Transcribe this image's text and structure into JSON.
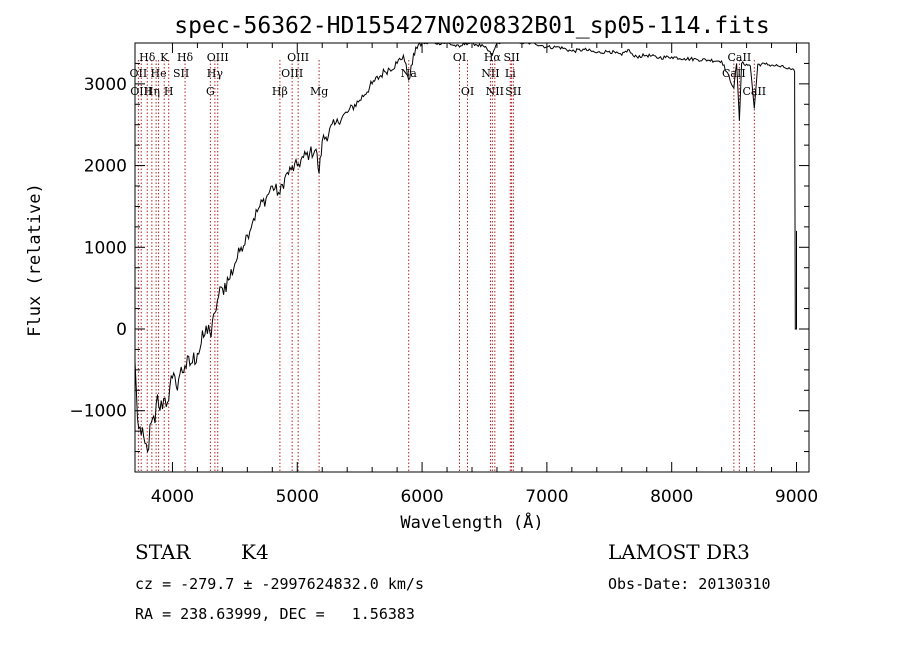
{
  "chart_data": {
    "type": "line",
    "title": "spec-56362-HD155427N020832B01_sp05-114.fits",
    "xlabel": "Wavelength (Å)",
    "ylabel": "Flux (relative)",
    "xlim": [
      3700,
      9100
    ],
    "ylim": [
      -1750,
      3500
    ],
    "xticks": [
      4000,
      5000,
      6000,
      7000,
      8000,
      9000
    ],
    "yticks": [
      -1000,
      0,
      1000,
      2000,
      3000
    ],
    "grid": false,
    "series": [
      {
        "name": "flux",
        "anchors": [
          [
            3700,
            -400
          ],
          [
            3720,
            -1100
          ],
          [
            3750,
            -1300
          ],
          [
            3780,
            -1400
          ],
          [
            3800,
            -1500
          ],
          [
            3830,
            -1150
          ],
          [
            3860,
            -1150
          ],
          [
            3880,
            -800
          ],
          [
            3900,
            -1000
          ],
          [
            3930,
            -850
          ],
          [
            3960,
            -900
          ],
          [
            3980,
            -700
          ],
          [
            4000,
            -600
          ],
          [
            4030,
            -700
          ],
          [
            4060,
            -550
          ],
          [
            4100,
            -450
          ],
          [
            4150,
            -420
          ],
          [
            4200,
            -300
          ],
          [
            4250,
            -100
          ],
          [
            4290,
            50
          ],
          [
            4310,
            -100
          ],
          [
            4340,
            200
          ],
          [
            4360,
            350
          ],
          [
            4400,
            500
          ],
          [
            4450,
            600
          ],
          [
            4500,
            800
          ],
          [
            4550,
            1000
          ],
          [
            4600,
            1150
          ],
          [
            4650,
            1350
          ],
          [
            4700,
            1500
          ],
          [
            4750,
            1600
          ],
          [
            4800,
            1750
          ],
          [
            4861,
            1650
          ],
          [
            4900,
            1850
          ],
          [
            4950,
            1950
          ],
          [
            5000,
            2000
          ],
          [
            5050,
            2100
          ],
          [
            5100,
            2150
          ],
          [
            5150,
            2200
          ],
          [
            5175,
            1900
          ],
          [
            5200,
            2300
          ],
          [
            5300,
            2500
          ],
          [
            5400,
            2650
          ],
          [
            5500,
            2800
          ],
          [
            5600,
            3000
          ],
          [
            5700,
            3150
          ],
          [
            5800,
            3250
          ],
          [
            5850,
            3350
          ],
          [
            5893,
            3050
          ],
          [
            5950,
            3450
          ],
          [
            6000,
            3500
          ],
          [
            6100,
            3500
          ],
          [
            6200,
            3500
          ],
          [
            6300,
            3450
          ],
          [
            6350,
            3500
          ],
          [
            6400,
            3500
          ],
          [
            6500,
            3450
          ],
          [
            6563,
            3350
          ],
          [
            6600,
            3500
          ],
          [
            6700,
            3550
          ],
          [
            6800,
            3500
          ],
          [
            6900,
            3500
          ],
          [
            7000,
            3450
          ],
          [
            7100,
            3450
          ],
          [
            7200,
            3400
          ],
          [
            7300,
            3420
          ],
          [
            7400,
            3380
          ],
          [
            7500,
            3400
          ],
          [
            7600,
            3350
          ],
          [
            7650,
            3420
          ],
          [
            7700,
            3330
          ],
          [
            7800,
            3350
          ],
          [
            7900,
            3320
          ],
          [
            8000,
            3330
          ],
          [
            8100,
            3310
          ],
          [
            8200,
            3300
          ],
          [
            8300,
            3290
          ],
          [
            8400,
            3280
          ],
          [
            8498,
            2950
          ],
          [
            8520,
            3250
          ],
          [
            8542,
            2550
          ],
          [
            8560,
            3250
          ],
          [
            8600,
            3240
          ],
          [
            8630,
            3220
          ],
          [
            8662,
            2700
          ],
          [
            8690,
            3240
          ],
          [
            8750,
            3240
          ],
          [
            8800,
            3230
          ],
          [
            8850,
            3220
          ],
          [
            8900,
            3200
          ],
          [
            8950,
            3180
          ],
          [
            8985,
            3150
          ],
          [
            8990,
            0
          ],
          [
            9000,
            0
          ],
          [
            9000,
            1200
          ]
        ],
        "color": "#000000"
      }
    ],
    "line_markers": {
      "color": "#b22222",
      "wavelengths": [
        3727,
        3750,
        3798,
        3835,
        3869,
        3889,
        3934,
        3970,
        4101,
        4304,
        4340,
        4363,
        4861,
        4959,
        5007,
        5175,
        5893,
        6300,
        6364,
        6548,
        6563,
        6583,
        6707,
        6717,
        6731,
        8498,
        8542,
        8662
      ]
    },
    "line_labels": [
      {
        "text": "Hδ",
        "wavelength": 3798,
        "row": 1
      },
      {
        "text": "K",
        "wavelength": 3934,
        "row": 1
      },
      {
        "text": "Hδ",
        "wavelength": 4101,
        "row": 1
      },
      {
        "text": "OIII",
        "wavelength": 4363,
        "row": 1
      },
      {
        "text": "OIII",
        "wavelength": 5007,
        "row": 1
      },
      {
        "text": "OI",
        "wavelength": 6300,
        "row": 1
      },
      {
        "text": "Hα",
        "wavelength": 6563,
        "row": 1
      },
      {
        "text": "SII",
        "wavelength": 6717,
        "row": 1
      },
      {
        "text": "CaII",
        "wavelength": 8542,
        "row": 1
      },
      {
        "text": "OII",
        "wavelength": 3727,
        "row": 2
      },
      {
        "text": "He",
        "wavelength": 3889,
        "row": 2
      },
      {
        "text": "SII",
        "wavelength": 4069,
        "row": 2
      },
      {
        "text": "Hγ",
        "wavelength": 4340,
        "row": 2
      },
      {
        "text": "OIII",
        "wavelength": 4959,
        "row": 2
      },
      {
        "text": "Na",
        "wavelength": 5893,
        "row": 2
      },
      {
        "text": "NII",
        "wavelength": 6548,
        "row": 2
      },
      {
        "text": "Li",
        "wavelength": 6707,
        "row": 2
      },
      {
        "text": "CaII",
        "wavelength": 8498,
        "row": 2
      },
      {
        "text": "OIII",
        "wavelength": 3750,
        "row": 3
      },
      {
        "text": "Hη",
        "wavelength": 3835,
        "row": 3
      },
      {
        "text": "H",
        "wavelength": 3970,
        "row": 3
      },
      {
        "text": "G",
        "wavelength": 4304,
        "row": 3
      },
      {
        "text": "Hβ",
        "wavelength": 4861,
        "row": 3
      },
      {
        "text": "Mg",
        "wavelength": 5175,
        "row": 3
      },
      {
        "text": "OI",
        "wavelength": 6364,
        "row": 3
      },
      {
        "text": "NII",
        "wavelength": 6583,
        "row": 3
      },
      {
        "text": "SII",
        "wavelength": 6731,
        "row": 3
      },
      {
        "text": "CaII",
        "wavelength": 8662,
        "row": 3
      }
    ]
  },
  "info": {
    "class_label": "STAR",
    "subclass": "K4",
    "survey": "LAMOST DR3",
    "cz_line": "cz = -279.7 ± -2997624832.0 km/s",
    "obs_date": "Obs-Date: 20130310",
    "coords": "RA = 238.63999, DEC =   1.56383"
  }
}
